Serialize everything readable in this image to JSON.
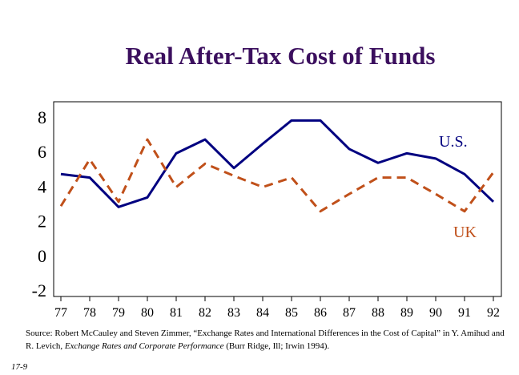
{
  "title": "Real After-Tax Cost of Funds",
  "chart_data": {
    "type": "line",
    "title": "Real After-Tax Cost of Funds",
    "categories": [
      "77",
      "78",
      "79",
      "80",
      "81",
      "82",
      "83",
      "84",
      "85",
      "86",
      "87",
      "88",
      "89",
      "90",
      "91",
      "92"
    ],
    "ylim": [
      -2,
      9
    ],
    "yticks": [
      "8",
      "6",
      "4",
      "2",
      "0",
      "-2"
    ],
    "grid": false,
    "series": [
      {
        "name": "U.S.",
        "color": "#000080",
        "style": "solid",
        "values": [
          4.7,
          4.5,
          2.8,
          3.35,
          5.9,
          6.7,
          5.05,
          6.45,
          7.8,
          7.8,
          6.15,
          5.35,
          5.9,
          5.6,
          4.7,
          3.1
        ]
      },
      {
        "name": "UK",
        "color": "#c0501a",
        "style": "dashed",
        "values": [
          2.85,
          5.55,
          3.1,
          6.7,
          3.95,
          5.3,
          4.6,
          3.95,
          4.5,
          2.55,
          3.55,
          4.5,
          4.5,
          3.55,
          2.55,
          4.8
        ]
      }
    ]
  },
  "source": {
    "prefix": "Source: Robert McCauley and Steven Zimmer, “Exchange Rates and International Differences in the Cost of Capital” in Y. Amihud and R. Levich, ",
    "book": "Exchange Rates and Corporate Performance",
    "suffix": " (Burr Ridge, Ill; Irwin 1994)."
  },
  "page_number": "17-9"
}
